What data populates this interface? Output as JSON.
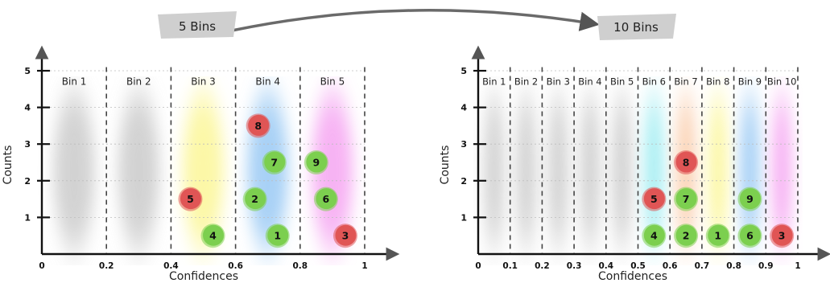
{
  "header": {
    "left_tag": "5 Bins",
    "right_tag": "10 Bins"
  },
  "colors": {
    "red_marker": "#e05555",
    "green_marker": "#7ccf4f",
    "tag_fill": "#cfcfcf"
  },
  "chart_data": [
    {
      "type": "scatter",
      "title": "",
      "xlabel": "Confidences",
      "ylabel": "Counts",
      "xlim": [
        0,
        1
      ],
      "ylim": [
        0,
        5
      ],
      "x_ticks": [
        "0",
        "0.2",
        "0.4",
        "0.6",
        "0.8",
        "1"
      ],
      "y_ticks": [
        "1",
        "2",
        "3",
        "4",
        "5"
      ],
      "bins": [
        {
          "label": "Bin 1",
          "range": [
            0.0,
            0.2
          ],
          "shade": "gray"
        },
        {
          "label": "Bin 2",
          "range": [
            0.2,
            0.4
          ],
          "shade": "gray"
        },
        {
          "label": "Bin 3",
          "range": [
            0.4,
            0.6
          ],
          "shade": "yellow"
        },
        {
          "label": "Bin 4",
          "range": [
            0.6,
            0.8
          ],
          "shade": "blue"
        },
        {
          "label": "Bin 5",
          "range": [
            0.8,
            1.0
          ],
          "shade": "magenta"
        }
      ],
      "points": [
        {
          "label": "1",
          "x": 0.73,
          "y": 0.5,
          "color": "green"
        },
        {
          "label": "2",
          "x": 0.66,
          "y": 1.5,
          "color": "green"
        },
        {
          "label": "3",
          "x": 0.94,
          "y": 0.5,
          "color": "red"
        },
        {
          "label": "4",
          "x": 0.53,
          "y": 0.5,
          "color": "green"
        },
        {
          "label": "5",
          "x": 0.46,
          "y": 1.5,
          "color": "red"
        },
        {
          "label": "6",
          "x": 0.88,
          "y": 1.5,
          "color": "green"
        },
        {
          "label": "7",
          "x": 0.72,
          "y": 2.5,
          "color": "green"
        },
        {
          "label": "8",
          "x": 0.67,
          "y": 3.5,
          "color": "red"
        },
        {
          "label": "9",
          "x": 0.85,
          "y": 2.5,
          "color": "green"
        }
      ]
    },
    {
      "type": "scatter",
      "title": "",
      "xlabel": "Confidences",
      "ylabel": "Counts",
      "xlim": [
        0,
        1
      ],
      "ylim": [
        0,
        5
      ],
      "x_ticks": [
        "0",
        "0.1",
        "0.2",
        "0.3",
        "0.4",
        "0.5",
        "0.6",
        "0.7",
        "0.8",
        "0.9",
        "1"
      ],
      "y_ticks": [
        "1",
        "2",
        "3",
        "4",
        "5"
      ],
      "bins": [
        {
          "label": "Bin 1",
          "range": [
            0.0,
            0.1
          ],
          "shade": "gray"
        },
        {
          "label": "Bin 2",
          "range": [
            0.1,
            0.2
          ],
          "shade": "gray"
        },
        {
          "label": "Bin 3",
          "range": [
            0.2,
            0.3
          ],
          "shade": "gray"
        },
        {
          "label": "Bin 4",
          "range": [
            0.3,
            0.4
          ],
          "shade": "gray"
        },
        {
          "label": "Bin 5",
          "range": [
            0.4,
            0.5
          ],
          "shade": "gray"
        },
        {
          "label": "Bin 6",
          "range": [
            0.5,
            0.6
          ],
          "shade": "cyan"
        },
        {
          "label": "Bin 7",
          "range": [
            0.6,
            0.7
          ],
          "shade": "orange"
        },
        {
          "label": "Bin 8",
          "range": [
            0.7,
            0.8
          ],
          "shade": "yellow"
        },
        {
          "label": "Bin 9",
          "range": [
            0.8,
            0.9
          ],
          "shade": "blue"
        },
        {
          "label": "Bin 10",
          "range": [
            0.9,
            1.0
          ],
          "shade": "magenta"
        }
      ],
      "points": [
        {
          "label": "1",
          "x": 0.75,
          "y": 0.5,
          "color": "green"
        },
        {
          "label": "2",
          "x": 0.65,
          "y": 0.5,
          "color": "green"
        },
        {
          "label": "3",
          "x": 0.95,
          "y": 0.5,
          "color": "red"
        },
        {
          "label": "4",
          "x": 0.55,
          "y": 0.5,
          "color": "green"
        },
        {
          "label": "5",
          "x": 0.55,
          "y": 1.5,
          "color": "red"
        },
        {
          "label": "6",
          "x": 0.85,
          "y": 0.5,
          "color": "green"
        },
        {
          "label": "7",
          "x": 0.65,
          "y": 1.5,
          "color": "green"
        },
        {
          "label": "8",
          "x": 0.65,
          "y": 2.5,
          "color": "red"
        },
        {
          "label": "9",
          "x": 0.85,
          "y": 1.5,
          "color": "green"
        }
      ]
    }
  ]
}
